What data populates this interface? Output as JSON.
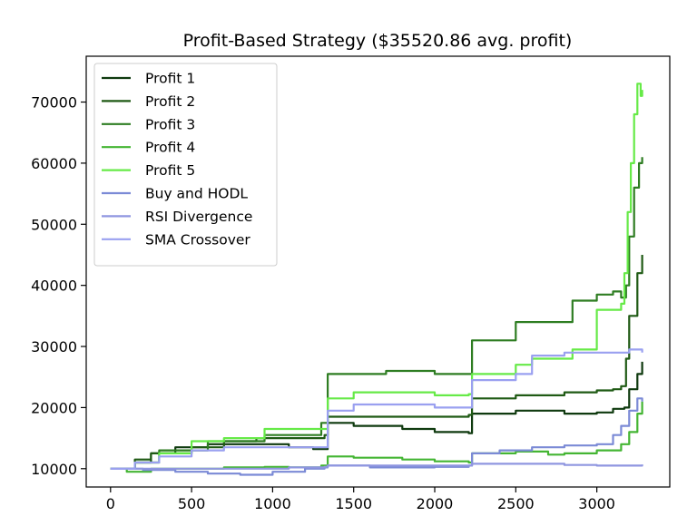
{
  "chart_data": {
    "type": "line",
    "title": "Profit-Based Strategy ($35520.86 avg. profit)",
    "xlabel": "",
    "ylabel": "",
    "xlim": [
      -150,
      3450
    ],
    "ylim": [
      7000,
      77500
    ],
    "xticks": [
      0,
      500,
      1000,
      1500,
      2000,
      2500,
      3000
    ],
    "yticks": [
      10000,
      20000,
      30000,
      40000,
      50000,
      60000,
      70000
    ],
    "legend_position": "top-left",
    "series": [
      {
        "name": "Profit 1",
        "color": "#0f3a0f",
        "x": [
          0,
          150,
          250,
          400,
          600,
          900,
          1100,
          1250,
          1320,
          1340,
          1500,
          1800,
          2000,
          2210,
          2230,
          2500,
          2800,
          3000,
          3100,
          3170,
          3200,
          3250,
          3280
        ],
        "y": [
          10000,
          11000,
          12500,
          13500,
          14000,
          14000,
          13500,
          13200,
          13200,
          17500,
          17000,
          16500,
          16000,
          15800,
          19000,
          19500,
          19000,
          19200,
          19800,
          20000,
          23000,
          25500,
          27500
        ]
      },
      {
        "name": "Profit 2",
        "color": "#1f5a14",
        "x": [
          0,
          150,
          250,
          500,
          700,
          900,
          1100,
          1320,
          1340,
          1500,
          2000,
          2210,
          2230,
          2500,
          2800,
          3000,
          3100,
          3150,
          3180,
          3200,
          3250,
          3280
        ],
        "y": [
          10000,
          11500,
          12500,
          13500,
          14500,
          15000,
          15000,
          15500,
          18500,
          18500,
          18500,
          18800,
          21500,
          22000,
          22500,
          22800,
          23000,
          23500,
          28000,
          35000,
          42000,
          45000
        ]
      },
      {
        "name": "Profit 3",
        "color": "#2e7d22",
        "x": [
          0,
          150,
          300,
          600,
          950,
          1300,
          1320,
          1340,
          1400,
          1700,
          2000,
          2210,
          2230,
          2500,
          2800,
          2850,
          3000,
          3100,
          3150,
          3180,
          3200,
          3230,
          3260,
          3280
        ],
        "y": [
          10000,
          11000,
          13000,
          14500,
          15500,
          17500,
          17500,
          25500,
          25500,
          26000,
          25500,
          25500,
          31000,
          34000,
          34000,
          37500,
          38500,
          39000,
          38000,
          40000,
          48000,
          56000,
          60000,
          61000
        ]
      },
      {
        "name": "Profit 4",
        "color": "#44b533",
        "x": [
          0,
          100,
          250,
          500,
          700,
          950,
          1100,
          1300,
          1320,
          1340,
          1500,
          1800,
          2000,
          2210,
          2230,
          2500,
          2700,
          2800,
          3000,
          3100,
          3150,
          3200,
          3250,
          3280
        ],
        "y": [
          10000,
          9500,
          10000,
          10000,
          10200,
          10300,
          10200,
          10500,
          10500,
          12000,
          11800,
          11500,
          11200,
          11000,
          12500,
          12800,
          12300,
          12500,
          13000,
          13000,
          14000,
          16000,
          19000,
          21000
        ]
      },
      {
        "name": "Profit 5",
        "color": "#66ea47",
        "x": [
          0,
          150,
          300,
          500,
          700,
          950,
          1100,
          1300,
          1320,
          1340,
          1500,
          2000,
          2210,
          2230,
          2500,
          2600,
          2850,
          3000,
          3100,
          3150,
          3170,
          3190,
          3210,
          3230,
          3250,
          3270,
          3280
        ],
        "y": [
          10000,
          11000,
          12500,
          14500,
          15000,
          16500,
          16500,
          16500,
          16500,
          21500,
          22500,
          22000,
          22200,
          25500,
          27000,
          28000,
          29500,
          36000,
          36000,
          37000,
          42000,
          52000,
          60000,
          68000,
          73000,
          71000,
          72000
        ]
      },
      {
        "name": "Buy and HODL",
        "color": "#7b8ad6",
        "x": [
          0,
          200,
          400,
          600,
          800,
          1000,
          1200,
          1320,
          1340,
          1600,
          2000,
          2210,
          2230,
          2400,
          2600,
          2800,
          3000,
          3100,
          3150,
          3200,
          3250,
          3280
        ],
        "y": [
          10000,
          9800,
          9500,
          9200,
          9000,
          9500,
          10000,
          10200,
          10500,
          10200,
          10300,
          10500,
          12500,
          13000,
          13500,
          13800,
          14000,
          15500,
          17000,
          19500,
          21500,
          21000
        ]
      },
      {
        "name": "RSI Divergence",
        "color": "#8f96e0",
        "x": [
          0,
          200,
          500,
          800,
          1100,
          1320,
          1340,
          1600,
          2000,
          2210,
          2230,
          2500,
          2800,
          3000,
          3280
        ],
        "y": [
          10000,
          10000,
          10000,
          10000,
          10200,
          10300,
          10500,
          10500,
          10500,
          10500,
          10800,
          10800,
          10600,
          10500,
          10700
        ]
      },
      {
        "name": "SMA Crossover",
        "color": "#9aa0f0",
        "x": [
          0,
          150,
          300,
          500,
          700,
          900,
          1100,
          1300,
          1320,
          1340,
          1500,
          1800,
          2000,
          2210,
          2230,
          2500,
          2600,
          2800,
          3000,
          3100,
          3200,
          3280
        ],
        "y": [
          10000,
          11000,
          12000,
          13000,
          13500,
          13500,
          13500,
          13500,
          13500,
          19500,
          20500,
          20500,
          20000,
          20000,
          24500,
          25500,
          28500,
          29000,
          29000,
          29000,
          29500,
          29000
        ]
      }
    ]
  }
}
